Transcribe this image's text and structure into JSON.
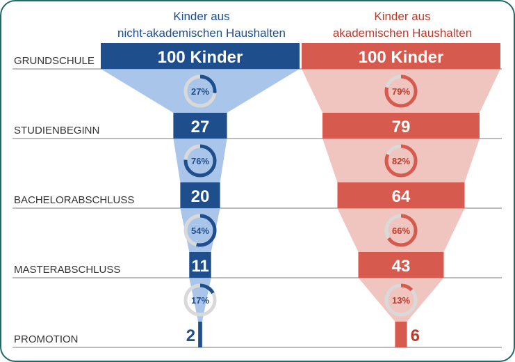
{
  "chart_data": {
    "type": "funnel",
    "stages": [
      "GRUNDSCHULE",
      "STUDIENBEGINN",
      "BACHELORABSCHLUSS",
      "MASTERABSCHLUSS",
      "PROMOTION"
    ],
    "series": [
      {
        "name": "Kinder aus nicht-akademischen Haushalten",
        "header_lines": [
          "Kinder aus",
          "nicht-akademischen Haushalten"
        ],
        "color": "#1f4e8c",
        "funnel_color": "#a9c6ea",
        "text_color": "#1f4e8c",
        "values": [
          100,
          27,
          20,
          11,
          2
        ],
        "value_labels": [
          "100 Kinder",
          "27",
          "20",
          "11",
          "2"
        ],
        "transition_pct": [
          27,
          76,
          54,
          17
        ],
        "transition_labels": [
          "27%",
          "76%",
          "54%",
          "17%"
        ]
      },
      {
        "name": "Kinder aus akademischen Haushalten",
        "header_lines": [
          "Kinder aus",
          "akademischen Haushalten"
        ],
        "color": "#d65a4e",
        "funnel_color": "#f0c4bf",
        "text_color": "#c0392b",
        "values": [
          100,
          79,
          64,
          43,
          6
        ],
        "value_labels": [
          "100 Kinder",
          "79",
          "64",
          "43",
          "6"
        ],
        "transition_pct": [
          79,
          82,
          66,
          13
        ],
        "transition_labels": [
          "79%",
          "82%",
          "66%",
          "13%"
        ]
      }
    ],
    "ring_track_color": "#d9d9d9",
    "frame_color": "#1d6b6b"
  }
}
